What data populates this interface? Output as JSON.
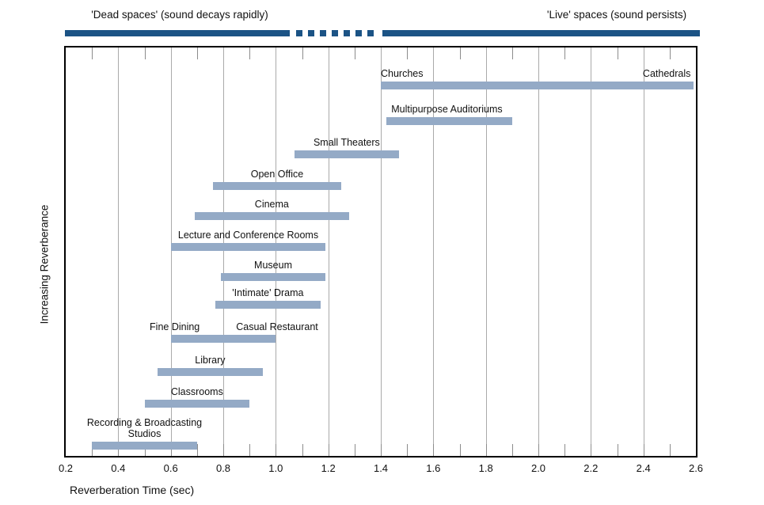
{
  "header": {
    "left_label": "'Dead spaces' (sound decays rapidly)",
    "right_label": "'Live' spaces (sound persists)",
    "bar_color": "#1b5385"
  },
  "chart_data": {
    "type": "bar",
    "subtype": "horizontal-range-bars",
    "title": "",
    "xlabel": "Reverberation Time (sec)",
    "ylabel": "Increasing Reverberance",
    "xlim": [
      0.2,
      2.6
    ],
    "grid": true,
    "x_ticks": [
      "0.2",
      "0.4",
      "0.6",
      "0.8",
      "1.0",
      "1.2",
      "1.4",
      "1.6",
      "1.8",
      "2.0",
      "2.2",
      "2.4",
      "2.6"
    ],
    "bar_color": "#94aac6",
    "gridline_color": "#aaaaaa",
    "tick_color": "#8c8c8c",
    "border_color": "#000000",
    "rows": [
      {
        "name": "churches-to-cathedrals",
        "start": 1.4,
        "end": 2.59,
        "labels": [
          {
            "text": "Churches",
            "align": "left",
            "anchor": 1.4
          },
          {
            "text": "Cathedrals",
            "align": "right",
            "anchor": 2.58
          }
        ]
      },
      {
        "name": "multipurpose-auditoriums",
        "start": 1.42,
        "end": 1.9,
        "labels": [
          {
            "text": "Multipurpose Auditoriums",
            "align": "left",
            "anchor": 1.44
          }
        ]
      },
      {
        "name": "small-theaters",
        "start": 1.07,
        "end": 1.47,
        "labels": [
          {
            "text": "Small Theaters",
            "align": "center"
          }
        ]
      },
      {
        "name": "open-office",
        "start": 0.76,
        "end": 1.25,
        "labels": [
          {
            "text": "Open Office",
            "align": "center"
          }
        ]
      },
      {
        "name": "cinema",
        "start": 0.69,
        "end": 1.28,
        "labels": [
          {
            "text": "Cinema",
            "align": "center"
          }
        ]
      },
      {
        "name": "lecture-and-conference-rooms",
        "start": 0.6,
        "end": 1.19,
        "labels": [
          {
            "text": "Lecture and Conference Rooms",
            "align": "center"
          }
        ]
      },
      {
        "name": "museum",
        "start": 0.79,
        "end": 1.19,
        "labels": [
          {
            "text": "Museum",
            "align": "center"
          }
        ]
      },
      {
        "name": "intimate-drama",
        "start": 0.77,
        "end": 1.17,
        "labels": [
          {
            "text": "'Intimate' Drama",
            "align": "center"
          }
        ]
      },
      {
        "name": "fine-dining-casual-restaurant",
        "start": 0.6,
        "end": 1.0,
        "labels": [
          {
            "text": "Fine Dining",
            "align": "center",
            "anchor": 0.615
          },
          {
            "text": "Casual Restaurant",
            "align": "center",
            "anchor": 1.005
          }
        ]
      },
      {
        "name": "library",
        "start": 0.55,
        "end": 0.95,
        "labels": [
          {
            "text": "Library",
            "align": "center"
          }
        ]
      },
      {
        "name": "classrooms",
        "start": 0.5,
        "end": 0.9,
        "labels": [
          {
            "text": "Classrooms",
            "align": "center"
          }
        ]
      },
      {
        "name": "recording-broadcasting-studios",
        "start": 0.3,
        "end": 0.7,
        "labels": [
          {
            "text": "Recording & Broadcasting\nStudios",
            "align": "center"
          }
        ]
      }
    ]
  }
}
